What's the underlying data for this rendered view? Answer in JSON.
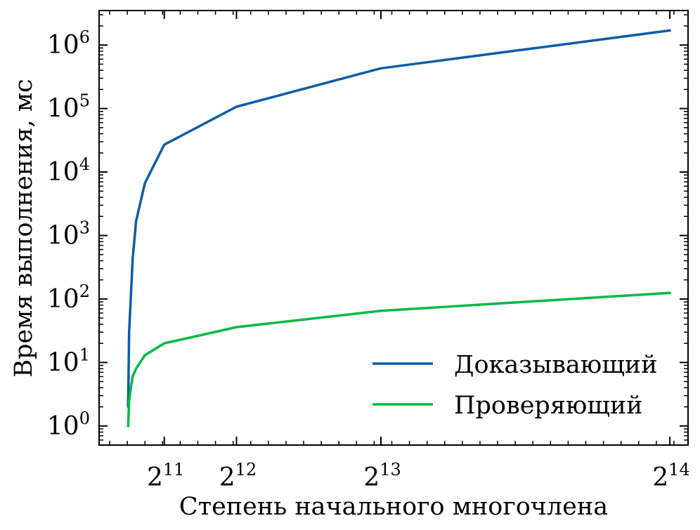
{
  "chart_data": {
    "type": "line",
    "title": "",
    "xlabel": "Степень начального многочлена",
    "ylabel": "Время выполнения, мс",
    "x_scale": "linear",
    "y_scale": "log",
    "xlim": [
      200,
      16900
    ],
    "ylim": [
      0.5,
      3500000
    ],
    "x_ticks": [
      {
        "value": 2048,
        "base": "2",
        "exp": "11"
      },
      {
        "value": 4096,
        "base": "2",
        "exp": "12"
      },
      {
        "value": 8192,
        "base": "2",
        "exp": "13"
      },
      {
        "value": 16384,
        "base": "2",
        "exp": "14"
      }
    ],
    "y_ticks": [
      {
        "value": 1,
        "base": "10",
        "exp": "0"
      },
      {
        "value": 10,
        "base": "10",
        "exp": "1"
      },
      {
        "value": 100,
        "base": "10",
        "exp": "2"
      },
      {
        "value": 1000,
        "base": "10",
        "exp": "3"
      },
      {
        "value": 10000,
        "base": "10",
        "exp": "4"
      },
      {
        "value": 100000,
        "base": "10",
        "exp": "5"
      },
      {
        "value": 1000000,
        "base": "10",
        "exp": "6"
      }
    ],
    "grid": false,
    "legend": "lower-right",
    "series": [
      {
        "name": "Доказывающий",
        "color": "#0c5da5",
        "x": [
          1024,
          1050,
          1100,
          1150,
          1250,
          1500,
          2048,
          4096,
          8192,
          16384
        ],
        "y": [
          2,
          30,
          110,
          420,
          1700,
          6700,
          27000,
          107000,
          430000,
          1700000
        ]
      },
      {
        "name": "Проверяющий",
        "color": "#00b945",
        "x": [
          1024,
          1050,
          1100,
          1150,
          1250,
          1500,
          2048,
          4096,
          8192,
          16384
        ],
        "y": [
          1,
          2.5,
          4,
          6,
          8,
          13,
          20,
          36,
          65,
          125
        ]
      }
    ]
  }
}
